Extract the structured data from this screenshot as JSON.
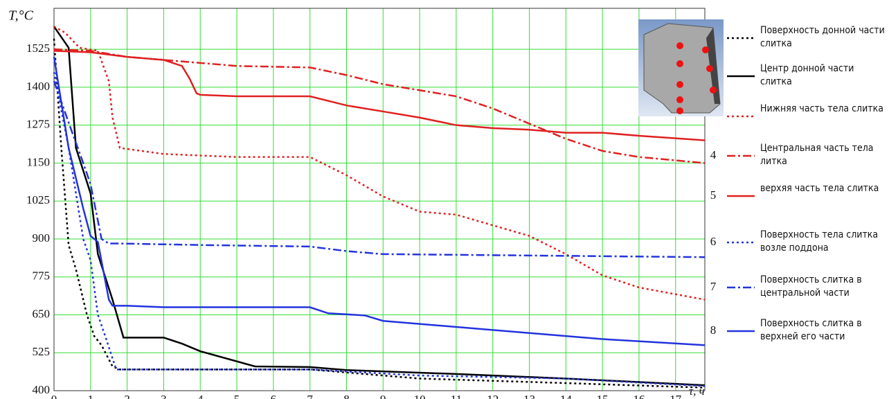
{
  "chart_data": {
    "type": "line",
    "y_label": "T,°C",
    "x_label": "τ, ч",
    "xlim": [
      0,
      17.8
    ],
    "ylim": [
      400,
      1660
    ],
    "xticks": [
      0,
      1,
      2,
      3,
      4,
      5,
      6,
      7,
      8,
      9,
      10,
      11,
      12,
      13,
      14,
      15,
      16,
      17
    ],
    "yticks": [
      400,
      525,
      650,
      775,
      900,
      1025,
      1150,
      1275,
      1400,
      1525
    ],
    "grid": true,
    "grid_color": "#33dd33",
    "series": [
      {
        "name": "Поверхность донной части слитка",
        "color": "#000000",
        "style": "dotted",
        "x": [
          0,
          0.2,
          0.4,
          0.6,
          0.9,
          1.1,
          1.3,
          1.6,
          1.8,
          5,
          7,
          10,
          14,
          17.8
        ],
        "values": [
          1560,
          1200,
          880,
          800,
          650,
          580,
          550,
          480,
          470,
          470,
          470,
          440,
          425,
          410
        ]
      },
      {
        "name": "Центр донной части слитка",
        "color": "#000000",
        "style": "solid",
        "x": [
          0,
          0.4,
          0.6,
          1,
          1.2,
          1.6,
          1.9,
          3,
          3.5,
          4,
          5.5,
          7,
          8,
          11,
          14,
          17.8
        ],
        "values": [
          1600,
          1530,
          1200,
          1050,
          850,
          700,
          575,
          575,
          555,
          530,
          480,
          478,
          468,
          455,
          440,
          418
        ]
      },
      {
        "name": "Нижняя часть тела слитка",
        "color": "#e02020",
        "style": "dotted",
        "x": [
          0,
          0.3,
          0.7,
          1.2,
          1.5,
          1.6,
          1.8,
          3,
          5,
          7,
          8,
          9,
          10,
          11,
          13,
          14,
          15,
          16,
          17.8
        ],
        "values": [
          1600,
          1580,
          1530,
          1520,
          1420,
          1300,
          1200,
          1180,
          1170,
          1170,
          1110,
          1040,
          990,
          980,
          910,
          850,
          780,
          740,
          700
        ]
      },
      {
        "name": "Центральная часть тела литка",
        "id": "4",
        "color": "#e02020",
        "style": "dashdot",
        "x": [
          0,
          1,
          2,
          3,
          4,
          5,
          7,
          8,
          9,
          11,
          12,
          13,
          14,
          15,
          16,
          17.8
        ],
        "values": [
          1525,
          1520,
          1500,
          1490,
          1480,
          1470,
          1465,
          1440,
          1410,
          1370,
          1330,
          1280,
          1230,
          1190,
          1170,
          1150
        ]
      },
      {
        "name": "верхяя часть тела слитка",
        "id": "5",
        "color": "#e02020",
        "style": "solid",
        "x": [
          0,
          1,
          2,
          3,
          3.5,
          3.7,
          3.9,
          4,
          5,
          7,
          8,
          9,
          10,
          11,
          12,
          13,
          14,
          15,
          16,
          17.8
        ],
        "values": [
          1520,
          1515,
          1500,
          1490,
          1470,
          1430,
          1380,
          1375,
          1370,
          1370,
          1340,
          1320,
          1300,
          1275,
          1265,
          1260,
          1250,
          1250,
          1240,
          1225
        ]
      },
      {
        "name": "Поверхность тела слитка возле поддона",
        "id": "6",
        "color": "#2233dd",
        "style": "dotted",
        "x": [
          0,
          0.4,
          0.8,
          1,
          1.2,
          1.4,
          1.7,
          7,
          10,
          14,
          17.8
        ],
        "values": [
          1450,
          1200,
          900,
          830,
          650,
          580,
          470,
          470,
          450,
          440,
          415
        ]
      },
      {
        "name": "Поверхность слитка в центральной части",
        "id": "7",
        "color": "#2233dd",
        "style": "dashdot",
        "x": [
          0,
          0.5,
          0.8,
          1,
          1.3,
          1.5,
          1.8,
          4,
          7,
          8,
          9,
          17.8
        ],
        "values": [
          1420,
          1250,
          1150,
          1080,
          900,
          885,
          885,
          880,
          875,
          860,
          850,
          840
        ]
      },
      {
        "name": "Поверхность слитка в верхней его части",
        "id": "8",
        "color": "#2233dd",
        "style": "solid",
        "x": [
          0,
          0.4,
          0.8,
          1,
          1.2,
          1.5,
          1.6,
          2,
          3,
          7,
          7.5,
          8.5,
          9,
          11,
          13,
          15,
          17.8
        ],
        "values": [
          1500,
          1200,
          1000,
          910,
          890,
          700,
          680,
          680,
          675,
          675,
          655,
          648,
          630,
          610,
          590,
          570,
          550
        ]
      }
    ]
  }
}
